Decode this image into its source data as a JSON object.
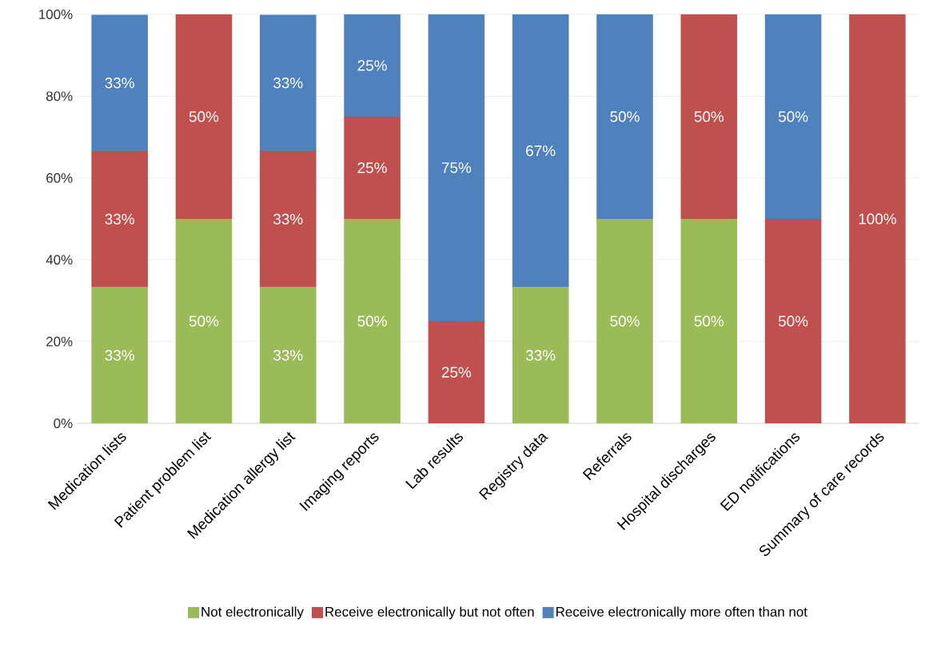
{
  "chart_data": {
    "type": "bar",
    "stacked": true,
    "categories": [
      "Medication lists",
      "Patient problem list",
      "Medication allergy list",
      "Imaging reports",
      "Lab results",
      "Registry data",
      "Referrals",
      "Hospital discharges",
      "ED notifications",
      "Summary of care records"
    ],
    "series": [
      {
        "name": "Not electronically",
        "color": "#9bbb59",
        "values": [
          33.3,
          50,
          33.3,
          50,
          null,
          33.3,
          50,
          50,
          null,
          null
        ],
        "value_labels": [
          "33%",
          "50%",
          "33%",
          "50%",
          null,
          "33%",
          "50%",
          "50%",
          null,
          null
        ]
      },
      {
        "name": "Receive electronically but not often",
        "color": "#c0504d",
        "values": [
          33.3,
          50,
          33.3,
          25,
          25,
          null,
          null,
          50,
          50,
          100
        ],
        "value_labels": [
          "33%",
          "50%",
          "33%",
          "25%",
          "25%",
          null,
          null,
          "50%",
          "50%",
          "100%"
        ]
      },
      {
        "name": "Receive electronically more often than not",
        "color": "#4f81bd",
        "values": [
          33.3,
          null,
          33.3,
          25,
          75,
          66.7,
          50,
          null,
          50,
          null
        ],
        "value_labels": [
          "33%",
          null,
          "33%",
          "25%",
          "75%",
          "67%",
          "50%",
          null,
          "50%",
          null
        ]
      }
    ],
    "ylim": [
      0,
      100
    ],
    "yticks": [
      {
        "value": 0,
        "label": "0%"
      },
      {
        "value": 20,
        "label": "20%"
      },
      {
        "value": 40,
        "label": "40%"
      },
      {
        "value": 60,
        "label": "60%"
      },
      {
        "value": 80,
        "label": "80%"
      },
      {
        "value": 100,
        "label": "100%"
      }
    ],
    "grid": "y",
    "legend": "bottom"
  }
}
